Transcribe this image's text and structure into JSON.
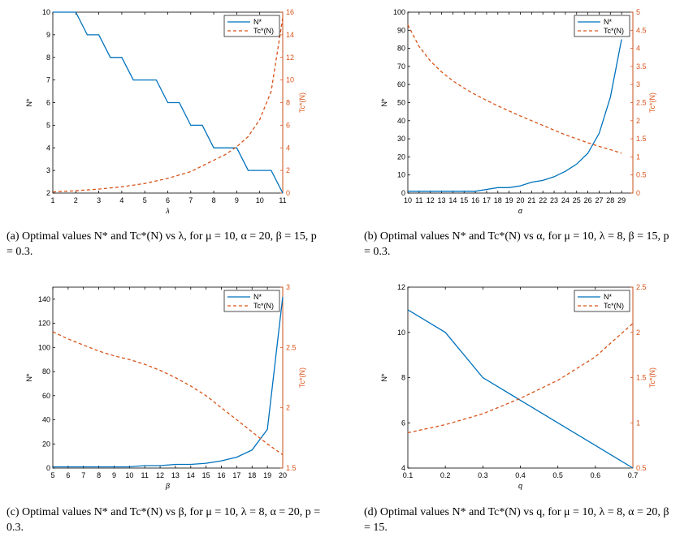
{
  "colors": {
    "n_series": "#0072BD",
    "tc_series": "#D95319",
    "frame": "#000000"
  },
  "chart_data": [
    {
      "type": "line",
      "id": "a",
      "xlabel": "λ",
      "ylabel_left": "N*",
      "ylabel_right": "Tc*(N)",
      "xlim": [
        1,
        11
      ],
      "ylim_left": [
        2,
        10
      ],
      "ylim_right": [
        0,
        16
      ],
      "xticks": [
        1,
        2,
        3,
        4,
        5,
        6,
        7,
        8,
        9,
        10,
        11
      ],
      "yticks_left": [
        2,
        3,
        4,
        5,
        6,
        7,
        8,
        9,
        10
      ],
      "yticks_right": [
        0,
        2,
        4,
        6,
        8,
        10,
        12,
        14,
        16
      ],
      "legend": [
        "N*",
        "Tc*(N)"
      ],
      "legend_position": "top-right",
      "series": [
        {
          "name": "N*",
          "axis": "left",
          "style": "solid",
          "x": [
            1,
            2,
            2.5,
            3,
            3.5,
            4,
            4.5,
            5,
            5.5,
            6,
            6.5,
            7,
            7.5,
            8,
            8.5,
            9,
            9.5,
            10,
            10.5,
            11
          ],
          "y": [
            10,
            10,
            9,
            9,
            8,
            8,
            7,
            7,
            7,
            6,
            6,
            5,
            5,
            4,
            4,
            4,
            3,
            3,
            3,
            2
          ]
        },
        {
          "name": "Tc*(N)",
          "axis": "right",
          "style": "dashed",
          "x": [
            1,
            2,
            3,
            4,
            5,
            6,
            7,
            8,
            8.5,
            9,
            9.5,
            10,
            10.5,
            11
          ],
          "y": [
            0.1,
            0.2,
            0.35,
            0.55,
            0.85,
            1.3,
            1.9,
            2.9,
            3.4,
            4.1,
            5.0,
            6.5,
            9.0,
            15.5
          ]
        }
      ],
      "caption": {
        "prefix": "(a)",
        "text": "Optimal values N* and Tc*(N) vs λ, for μ = 10, α = 20, β = 15, p = 0.3."
      }
    },
    {
      "type": "line",
      "id": "b",
      "xlabel": "α",
      "ylabel_left": "N*",
      "ylabel_right": "Tc*(N)",
      "xlim": [
        10,
        30
      ],
      "ylim_left": [
        0,
        100
      ],
      "ylim_right": [
        0,
        5
      ],
      "xticks": [
        10,
        11,
        12,
        13,
        14,
        15,
        16,
        17,
        18,
        19,
        20,
        21,
        22,
        23,
        24,
        25,
        26,
        27,
        28,
        29
      ],
      "yticks_left": [
        0,
        10,
        20,
        30,
        40,
        50,
        60,
        70,
        80,
        90,
        100
      ],
      "yticks_right": [
        0,
        0.5,
        1,
        1.5,
        2,
        2.5,
        3,
        3.5,
        4,
        4.5,
        5
      ],
      "legend": [
        "N*",
        "Tc*(N)"
      ],
      "legend_position": "top-right",
      "series": [
        {
          "name": "N*",
          "axis": "left",
          "style": "solid",
          "x": [
            10,
            11,
            12,
            13,
            14,
            15,
            16,
            17,
            18,
            19,
            20,
            21,
            22,
            23,
            24,
            25,
            26,
            27,
            28,
            29
          ],
          "y": [
            1,
            1,
            1,
            1,
            1,
            1,
            1,
            2,
            3,
            3,
            4,
            6,
            7,
            9,
            12,
            16,
            22,
            33,
            53,
            85
          ]
        },
        {
          "name": "Tc*(N)",
          "axis": "right",
          "style": "dashed",
          "x": [
            10,
            11,
            12,
            13,
            14,
            15,
            16,
            17,
            18,
            19,
            20,
            21,
            22,
            23,
            24,
            25,
            26,
            27,
            28,
            29
          ],
          "y": [
            4.65,
            4.05,
            3.65,
            3.35,
            3.1,
            2.9,
            2.72,
            2.56,
            2.41,
            2.27,
            2.13,
            2.0,
            1.87,
            1.74,
            1.61,
            1.5,
            1.39,
            1.29,
            1.2,
            1.1
          ]
        }
      ],
      "caption": {
        "prefix": "(b)",
        "text": "Optimal values N* and Tc*(N) vs α, for μ = 10, λ = 8, β = 15, p = 0.3."
      }
    },
    {
      "type": "line",
      "id": "c",
      "xlabel": "β",
      "ylabel_left": "N*",
      "ylabel_right": "Tc*(N)",
      "xlim": [
        5,
        20
      ],
      "ylim_left": [
        0,
        150
      ],
      "ylim_right": [
        1.5,
        3
      ],
      "xticks": [
        5,
        6,
        7,
        8,
        9,
        10,
        11,
        12,
        13,
        14,
        15,
        16,
        17,
        18,
        19,
        20
      ],
      "yticks_left": [
        0,
        20,
        40,
        60,
        80,
        100,
        120,
        140
      ],
      "yticks_right": [
        1.5,
        2,
        2.5,
        3
      ],
      "legend": [
        "N*",
        "Tc*(N)"
      ],
      "legend_position": "top-right",
      "series": [
        {
          "name": "N*",
          "axis": "left",
          "style": "solid",
          "x": [
            5,
            6,
            7,
            8,
            9,
            10,
            11,
            12,
            13,
            14,
            15,
            16,
            17,
            18,
            19,
            20
          ],
          "y": [
            1,
            1,
            1,
            1,
            1,
            1,
            2,
            2,
            3,
            3,
            4,
            6,
            9,
            15,
            32,
            142
          ]
        },
        {
          "name": "Tc*(N)",
          "axis": "right",
          "style": "dashed",
          "x": [
            5,
            6,
            7,
            8,
            9,
            10,
            11,
            12,
            13,
            14,
            15,
            16,
            17,
            18,
            19,
            20
          ],
          "y": [
            2.63,
            2.57,
            2.52,
            2.47,
            2.43,
            2.4,
            2.36,
            2.31,
            2.25,
            2.18,
            2.1,
            2.0,
            1.9,
            1.8,
            1.7,
            1.61
          ]
        }
      ],
      "caption": {
        "prefix": "(c)",
        "text": "Optimal values N* and Tc*(N) vs β, for μ = 10, λ = 8, α = 20, p = 0.3."
      }
    },
    {
      "type": "line",
      "id": "d",
      "xlabel": "q",
      "ylabel_left": "N*",
      "ylabel_right": "Tc*(N)",
      "xlim": [
        0.1,
        0.7
      ],
      "ylim_left": [
        4,
        12
      ],
      "ylim_right": [
        0.5,
        2.5
      ],
      "xticks": [
        0.1,
        0.2,
        0.3,
        0.4,
        0.5,
        0.6,
        0.7
      ],
      "yticks_left": [
        4,
        6,
        8,
        10,
        12
      ],
      "yticks_right": [
        0.5,
        1,
        1.5,
        2,
        2.5
      ],
      "legend": [
        "N*",
        "Tc*(N)"
      ],
      "legend_position": "top-right",
      "series": [
        {
          "name": "N*",
          "axis": "left",
          "style": "solid",
          "x": [
            0.1,
            0.2,
            0.3,
            0.4,
            0.5,
            0.6,
            0.7
          ],
          "y": [
            11,
            10,
            8,
            7,
            6,
            5,
            4
          ]
        },
        {
          "name": "Tc*(N)",
          "axis": "right",
          "style": "dashed",
          "x": [
            0.1,
            0.2,
            0.3,
            0.4,
            0.5,
            0.6,
            0.7
          ],
          "y": [
            0.89,
            0.98,
            1.1,
            1.27,
            1.47,
            1.73,
            2.1
          ]
        }
      ],
      "caption": {
        "prefix": "(d)",
        "text": "Optimal values N* and Tc*(N) vs q, for μ = 10, λ = 8, α = 20, β = 15."
      }
    }
  ]
}
